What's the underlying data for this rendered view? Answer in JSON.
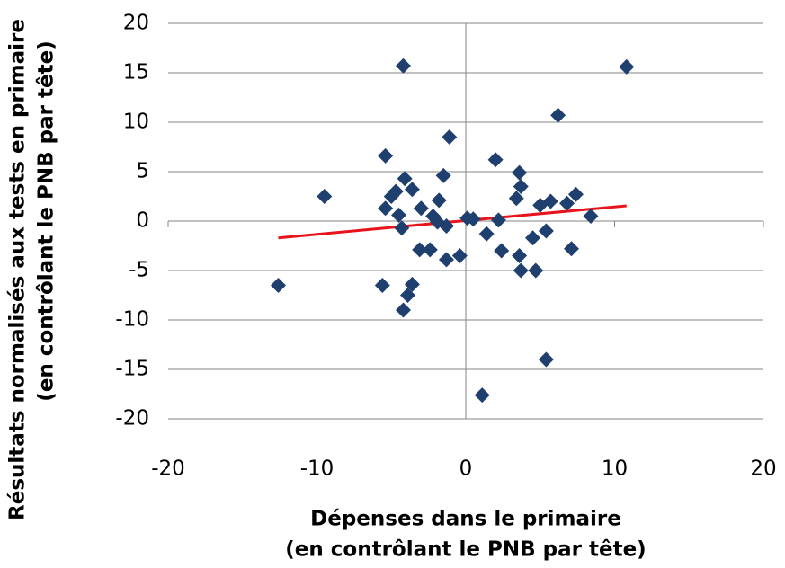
{
  "chart_data": {
    "type": "scatter",
    "xlabel": [
      "Dépenses dans le primaire",
      "(en contrôlant le PNB par tête)"
    ],
    "ylabel": [
      "Résultats normalisés aux tests en primaire",
      "(en contrôlant le PNB par tête)"
    ],
    "xlim": [
      -20,
      20
    ],
    "xticks": [
      -20,
      -10,
      0,
      10,
      20
    ],
    "ylim": [
      -20,
      20
    ],
    "yticks": [
      -20,
      -15,
      -10,
      -5,
      0,
      5,
      10,
      15,
      20
    ],
    "grid": true,
    "color": "#1f3f6e",
    "x": [
      -12.6,
      -9.5,
      -4.2,
      10.8,
      6.2,
      -1.1,
      -5.4,
      2.0,
      -4.1,
      3.6,
      -1.5,
      3.7,
      -5.0,
      -4.7,
      -3.6,
      -1.8,
      3.4,
      5.7,
      7.4,
      6.8,
      5.0,
      -5.4,
      -3.0,
      -4.5,
      -2.2,
      -1.9,
      -1.3,
      0.1,
      0.5,
      2.2,
      8.4,
      -4.3,
      1.4,
      5.4,
      4.5,
      -3.1,
      -2.4,
      2.4,
      7.1,
      -1.3,
      -0.4,
      3.6,
      3.7,
      4.7,
      -3.6,
      -5.6,
      -3.9,
      -4.2,
      5.4,
      1.1
    ],
    "y": [
      -6.5,
      2.5,
      15.7,
      15.6,
      10.7,
      8.5,
      6.6,
      6.2,
      4.3,
      4.9,
      4.6,
      3.5,
      2.5,
      3.0,
      3.2,
      2.1,
      2.3,
      2.0,
      2.7,
      1.8,
      1.6,
      1.3,
      1.3,
      0.6,
      0.5,
      -0.1,
      -0.5,
      0.3,
      0.2,
      0.1,
      0.5,
      -0.7,
      -1.3,
      -1.0,
      -1.7,
      -2.9,
      -2.9,
      -3.0,
      -2.8,
      -3.9,
      -3.5,
      -3.5,
      -5.0,
      -5.0,
      -6.4,
      -6.5,
      -7.5,
      -9.0,
      -14.0,
      -17.6
    ],
    "trendline": {
      "x": [
        -12.6,
        10.8
      ],
      "y": [
        -1.7,
        1.55
      ],
      "color": "#e8141c"
    }
  }
}
